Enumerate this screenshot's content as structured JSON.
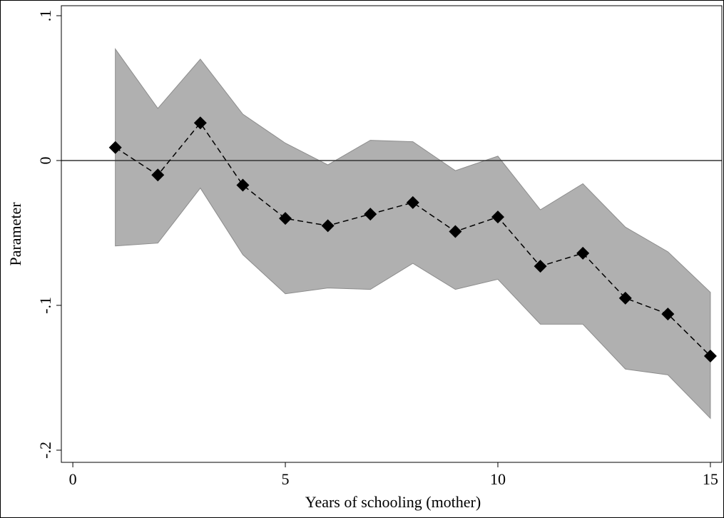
{
  "chart_data": {
    "type": "line",
    "xlabel": "Years of schooling (mother)",
    "ylabel": "Parameter",
    "x": [
      1,
      2,
      3,
      4,
      5,
      6,
      7,
      8,
      9,
      10,
      11,
      12,
      13,
      14,
      15
    ],
    "values": [
      0.009,
      -0.01,
      0.026,
      -0.017,
      -0.04,
      -0.045,
      -0.037,
      -0.029,
      -0.049,
      -0.039,
      -0.073,
      -0.064,
      -0.095,
      -0.106,
      -0.135
    ],
    "upper": [
      0.077,
      0.036,
      0.07,
      0.032,
      0.012,
      -0.003,
      0.014,
      0.013,
      -0.007,
      0.003,
      -0.034,
      -0.016,
      -0.046,
      -0.063,
      -0.091
    ],
    "lower": [
      -0.059,
      -0.057,
      -0.019,
      -0.065,
      -0.092,
      -0.088,
      -0.089,
      -0.071,
      -0.089,
      -0.082,
      -0.113,
      -0.113,
      -0.144,
      -0.148,
      -0.178
    ],
    "color": "#000000",
    "band_color": "#b0b0b0",
    "reference_line": 0,
    "xlim": [
      -0.27,
      15.27
    ],
    "ylim": [
      -0.2084,
      0.1069
    ],
    "xticks": [
      0,
      5,
      10,
      15
    ],
    "yticks": [
      {
        "value": -0.2,
        "label": "-.2"
      },
      {
        "value": -0.1,
        "label": "-.1"
      },
      0,
      {
        "value": 0.1,
        "label": ".1"
      }
    ]
  }
}
